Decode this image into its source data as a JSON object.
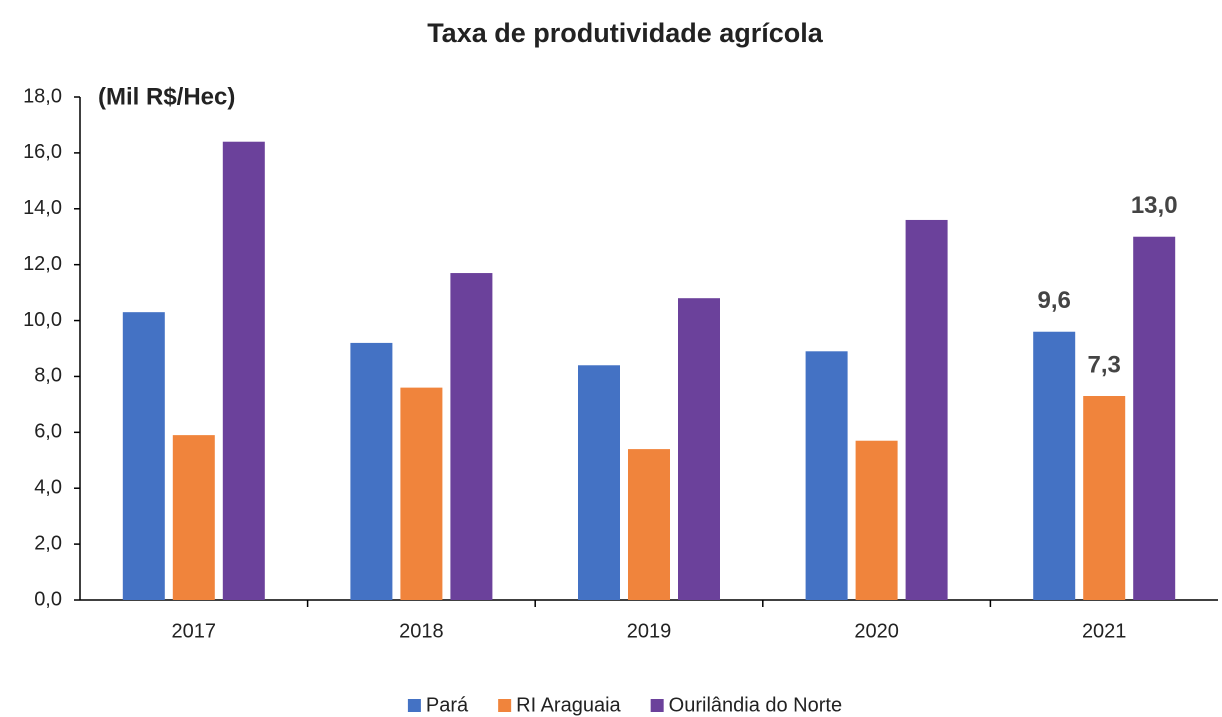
{
  "chart_data": {
    "type": "bar",
    "title": "Taxa de produtividade agrícola",
    "y_label": "(Mil R$/Hec)",
    "categories": [
      "2017",
      "2018",
      "2019",
      "2020",
      "2021"
    ],
    "series": [
      {
        "name": "Pará",
        "color": "#4472c4",
        "values": [
          10.3,
          9.2,
          8.4,
          8.9,
          9.6
        ],
        "value_labels": [
          null,
          null,
          null,
          null,
          "9,6"
        ]
      },
      {
        "name": "RI Araguaia",
        "color": "#f0843c",
        "values": [
          5.9,
          7.6,
          5.4,
          5.7,
          7.3
        ],
        "value_labels": [
          null,
          null,
          null,
          null,
          "7,3"
        ]
      },
      {
        "name": "Ourilândia do Norte",
        "color": "#6b419b",
        "values": [
          16.4,
          11.7,
          10.8,
          13.6,
          13.0
        ],
        "value_labels": [
          null,
          null,
          null,
          null,
          "13,0"
        ]
      }
    ],
    "ylim": [
      0,
      18
    ],
    "yticks": [
      {
        "value": 0,
        "label": "0,0"
      },
      {
        "value": 2,
        "label": "2,0"
      },
      {
        "value": 4,
        "label": "4,0"
      },
      {
        "value": 6,
        "label": "6,0"
      },
      {
        "value": 8,
        "label": "8,0"
      },
      {
        "value": 10,
        "label": "10,0"
      },
      {
        "value": 12,
        "label": "12,0"
      },
      {
        "value": 14,
        "label": "14,0"
      },
      {
        "value": 16,
        "label": "16,0"
      },
      {
        "value": 18,
        "label": "18,0"
      }
    ],
    "legend": "bottom"
  }
}
